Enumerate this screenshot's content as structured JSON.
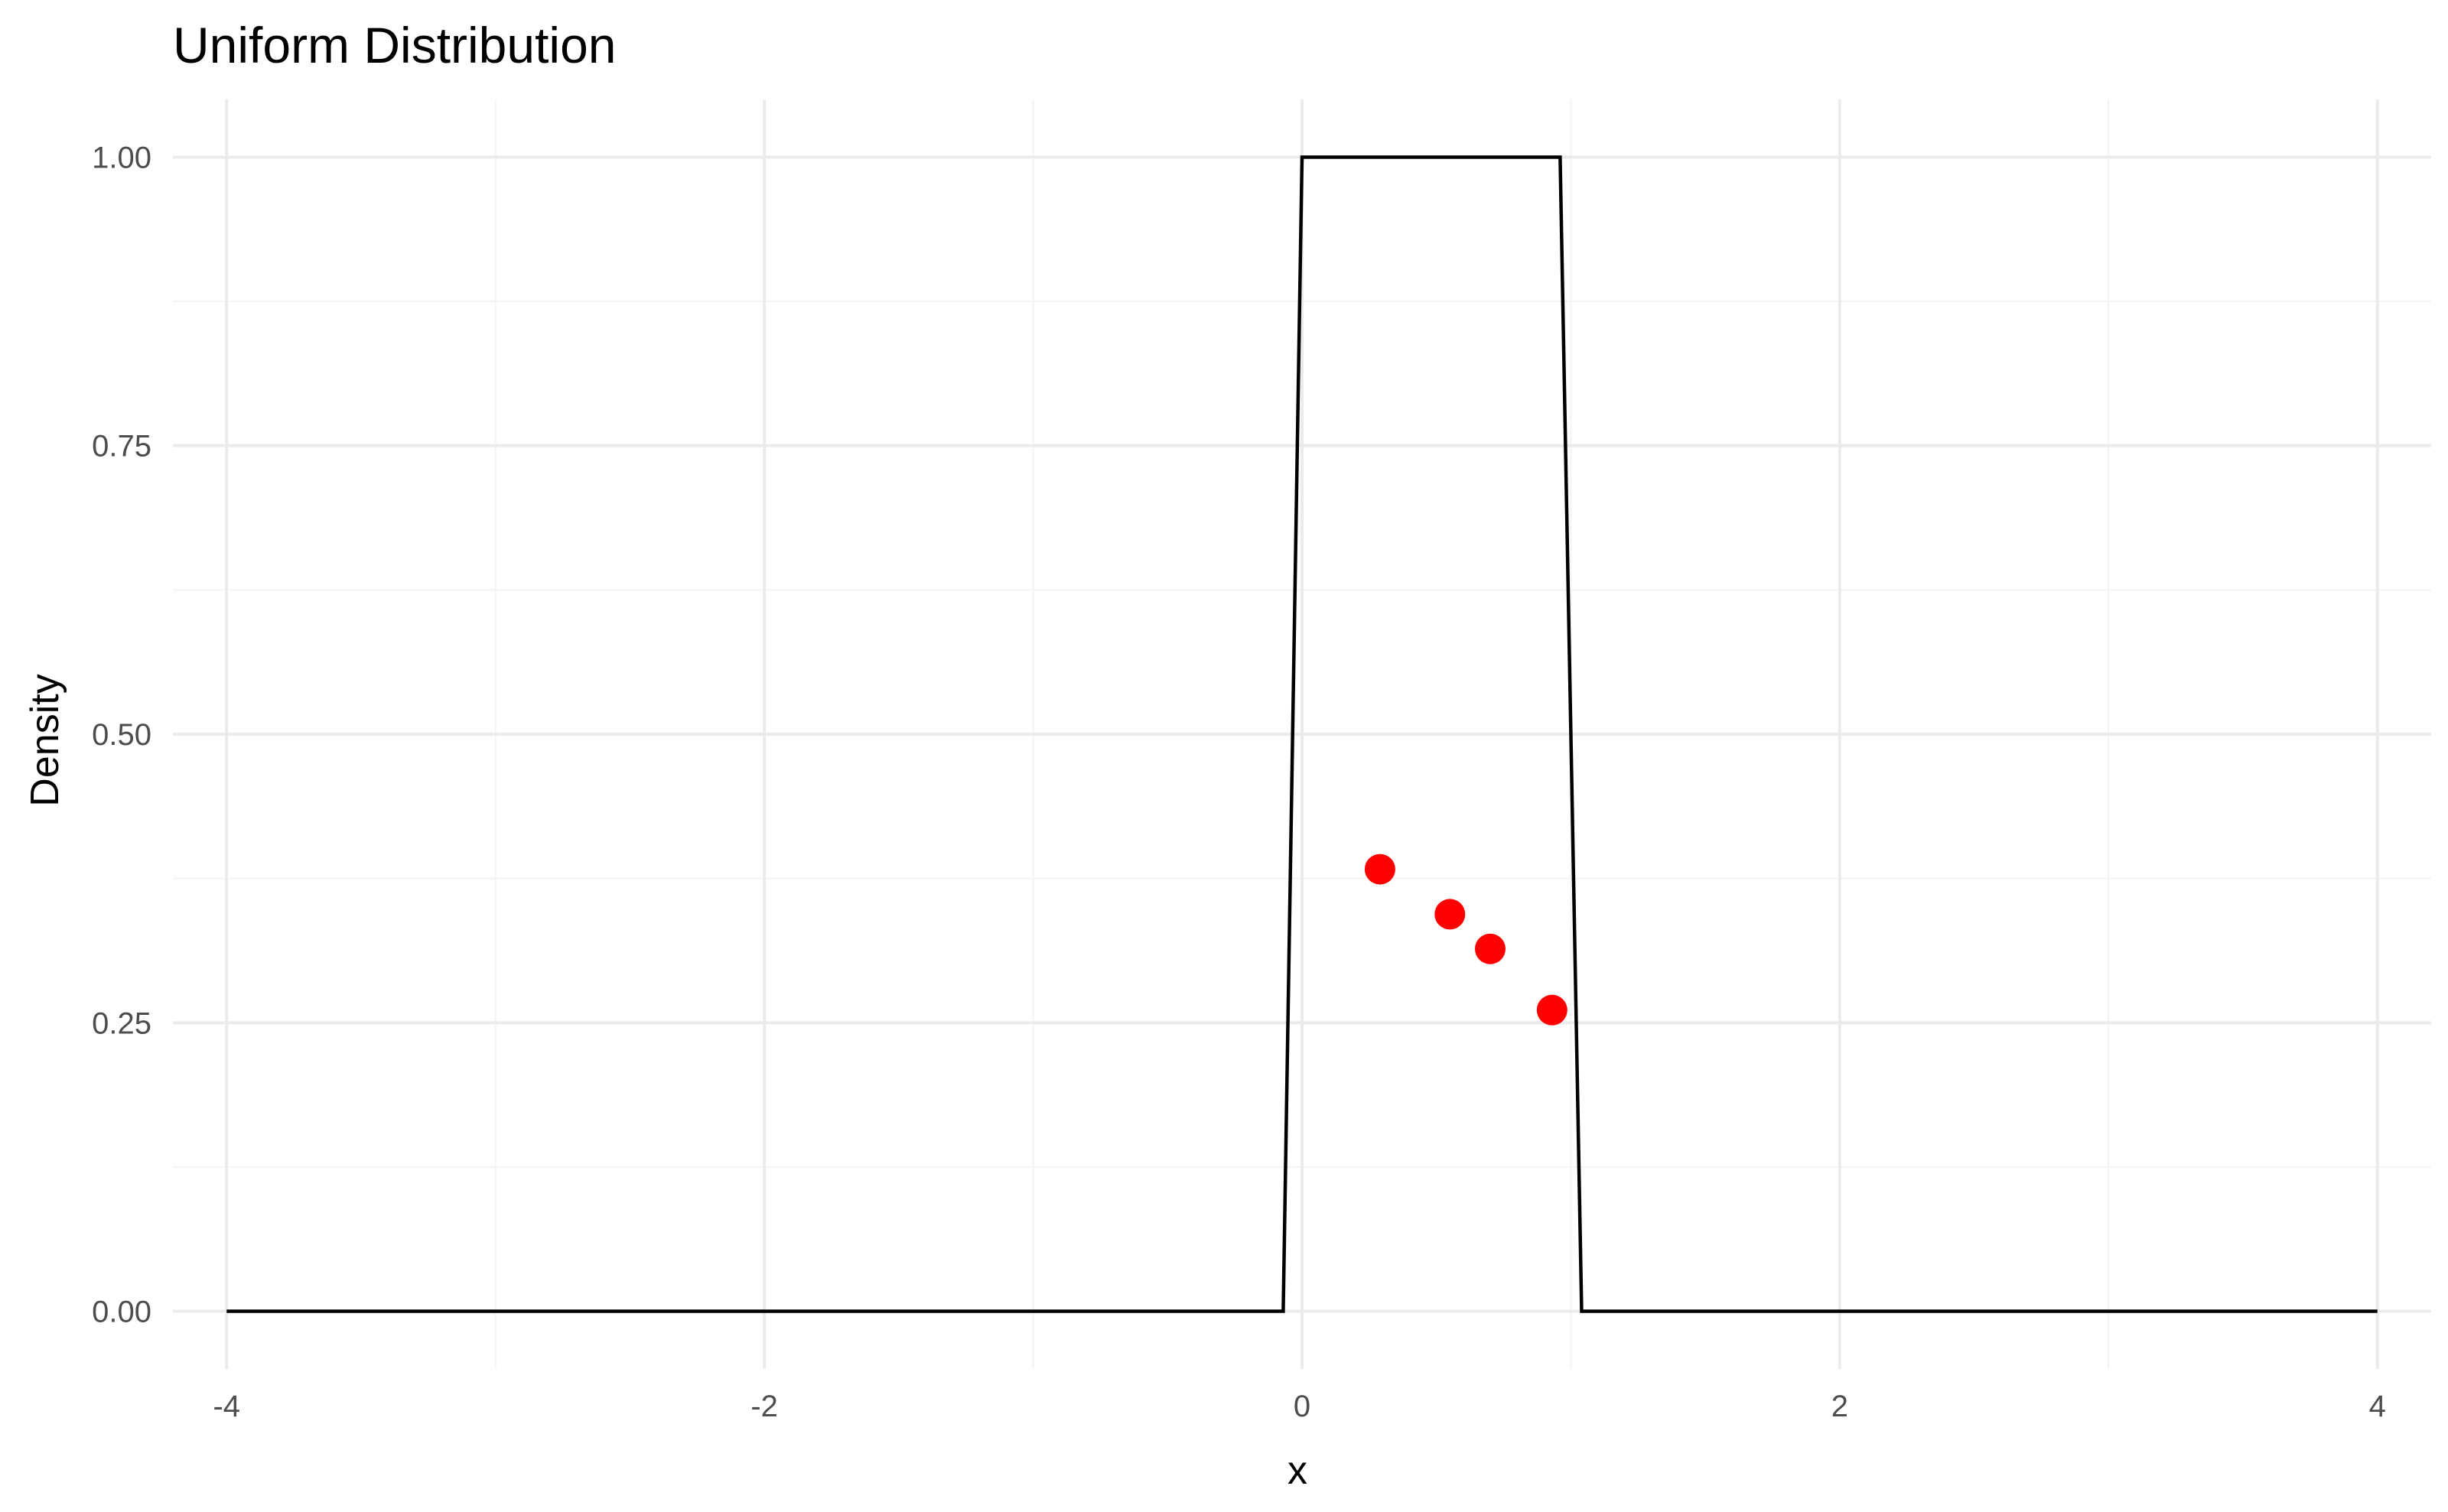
{
  "chart_data": {
    "type": "line",
    "title": "Uniform Distribution",
    "xlabel": "x",
    "ylabel": "Density",
    "xlim": [
      -4.2,
      4.2
    ],
    "ylim": [
      -0.05,
      1.05
    ],
    "x_ticks": [
      -4,
      -2,
      0,
      2,
      4
    ],
    "x_tick_labels": [
      "-4",
      "-2",
      "0",
      "2",
      "4"
    ],
    "y_ticks": [
      0,
      0.25,
      0.5,
      0.75,
      1
    ],
    "y_tick_labels": [
      "0.00",
      "0.25",
      "0.50",
      "0.75",
      "1.00"
    ],
    "x_minor_ticks": [
      -3,
      -1,
      1,
      3
    ],
    "y_minor_ticks": [
      0.125,
      0.375,
      0.625,
      0.875
    ],
    "grid": true,
    "legend": "none",
    "series": [
      {
        "type": "line",
        "color": "#000000",
        "x": [
          -4,
          -0.07,
          0,
          0.96,
          1.04,
          4
        ],
        "y": [
          0,
          0,
          1,
          1,
          0,
          0
        ]
      },
      {
        "type": "scatter",
        "color": "#ff0000",
        "x": [
          0.29,
          0.55,
          0.7,
          0.93
        ],
        "y": [
          0.383,
          0.344,
          0.314,
          0.261
        ]
      }
    ]
  }
}
